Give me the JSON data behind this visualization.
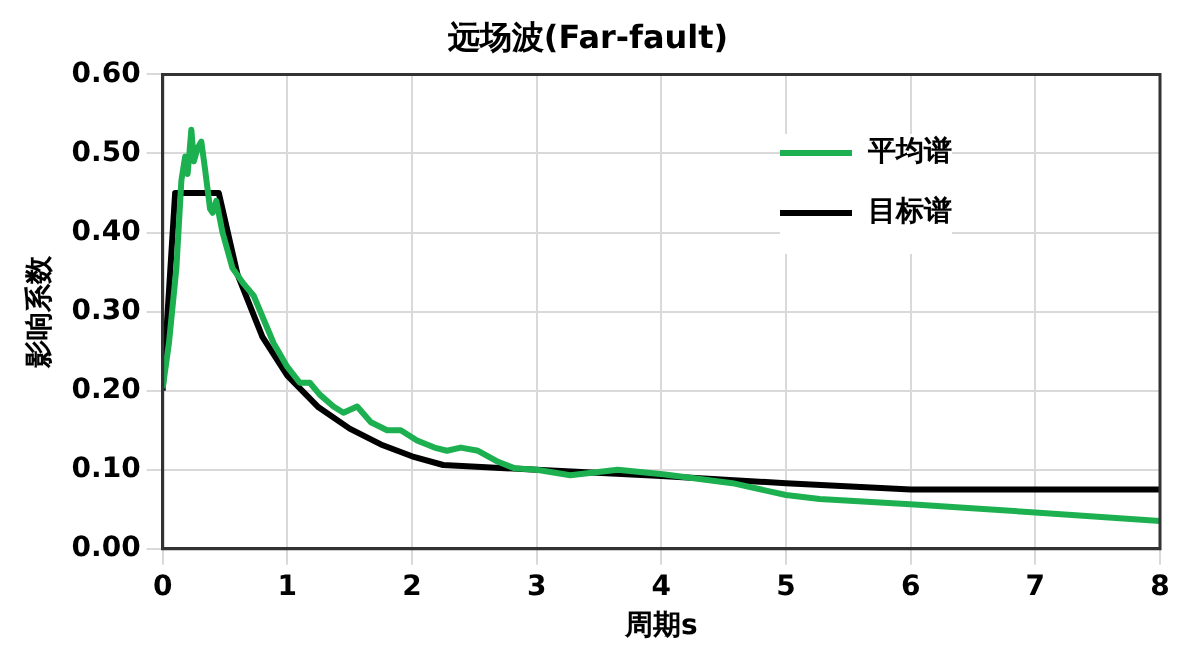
{
  "chart_data": {
    "type": "line",
    "title": "远场波(Far-fault)",
    "xlabel": "周期s",
    "ylabel": "影响系数",
    "xlim": [
      0,
      8
    ],
    "xticks": [
      0,
      1,
      2,
      3,
      4,
      5,
      6,
      7,
      8
    ],
    "ylim": [
      0,
      0.6
    ],
    "yticks": [
      {
        "value": 0,
        "label": "0.00"
      },
      {
        "value": 0.1,
        "label": "0.10"
      },
      {
        "value": 0.2,
        "label": "0.20"
      },
      {
        "value": 0.3,
        "label": "0.30"
      },
      {
        "value": 0.4,
        "label": "0.40"
      },
      {
        "value": 0.5,
        "label": "0.50"
      },
      {
        "value": 0.6,
        "label": "0.60"
      }
    ],
    "grid": true,
    "legend": "top right",
    "marker": "none",
    "line_style": "solid",
    "series": [
      {
        "name": "平均谱",
        "color": "#1db050",
        "x": [
          0,
          0.05,
          0.11,
          0.15,
          0.18,
          0.2,
          0.23,
          0.25,
          0.28,
          0.31,
          0.34,
          0.38,
          0.4,
          0.43,
          0.48,
          0.56,
          0.65,
          0.73,
          0.81,
          0.89,
          1.0,
          1.1,
          1.18,
          1.26,
          1.37,
          1.45,
          1.56,
          1.67,
          1.8,
          1.91,
          2.04,
          2.18,
          2.28,
          2.39,
          2.53,
          2.69,
          2.82,
          3.0,
          3.27,
          3.65,
          4.03,
          4.57,
          5.0,
          5.27,
          6.03,
          7.0,
          8.0
        ],
        "values": [
          0.203,
          0.26,
          0.355,
          0.466,
          0.496,
          0.474,
          0.53,
          0.49,
          0.507,
          0.515,
          0.48,
          0.43,
          0.425,
          0.44,
          0.4,
          0.355,
          0.335,
          0.32,
          0.29,
          0.26,
          0.23,
          0.21,
          0.21,
          0.195,
          0.18,
          0.172,
          0.18,
          0.16,
          0.15,
          0.15,
          0.137,
          0.128,
          0.124,
          0.128,
          0.124,
          0.11,
          0.102,
          0.1,
          0.093,
          0.1,
          0.094,
          0.083,
          0.068,
          0.063,
          0.056,
          0.046,
          0.035
        ]
      },
      {
        "name": "目标谱",
        "color": "#000000",
        "x": [
          0,
          0.1,
          0.45,
          0.6,
          0.8,
          1.0,
          1.25,
          1.5,
          1.75,
          2.0,
          2.25,
          3.0,
          4.0,
          5.0,
          6.0,
          7.0,
          8.0
        ],
        "values": [
          0.2,
          0.45,
          0.45,
          0.347,
          0.268,
          0.219,
          0.179,
          0.152,
          0.132,
          0.117,
          0.106,
          0.1,
          0.092,
          0.083,
          0.075,
          0.075,
          0.075
        ]
      }
    ]
  }
}
